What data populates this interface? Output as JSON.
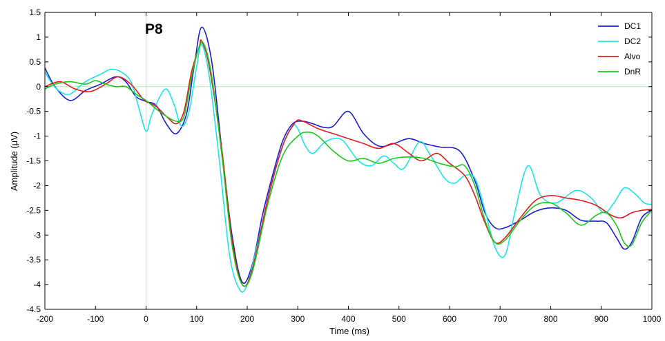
{
  "chart_data": {
    "type": "line",
    "title": "P8",
    "xlabel": "Time (ms)",
    "ylabel": "Amplitude (μV)",
    "xlim": [
      -200,
      1000
    ],
    "ylim": [
      -4.5,
      1.5
    ],
    "xticks": [
      -200,
      -100,
      0,
      100,
      200,
      300,
      400,
      500,
      600,
      700,
      800,
      900,
      1000
    ],
    "yticks": [
      -4.5,
      -4,
      -3.5,
      -3,
      -2.5,
      -2,
      -1.5,
      -1,
      -0.5,
      0,
      0.5,
      1,
      1.5
    ],
    "grid": false,
    "legend_position": "top-right",
    "reference_lines": {
      "x": 0,
      "y": 0,
      "color": "#b4e6b4"
    },
    "series": [
      {
        "name": "DC1",
        "color": "#1a1adc",
        "x": [
          -200,
          -180,
          -150,
          -120,
          -90,
          -60,
          -40,
          -20,
          0,
          20,
          40,
          60,
          80,
          95,
          110,
          130,
          150,
          170,
          190,
          210,
          230,
          250,
          270,
          290,
          310,
          330,
          350,
          370,
          400,
          430,
          460,
          490,
          520,
          550,
          580,
          620,
          650,
          670,
          690,
          710,
          740,
          770,
          800,
          830,
          860,
          890,
          910,
          930,
          945,
          960,
          980,
          1000
        ],
        "y": [
          0.38,
          0.0,
          -0.28,
          -0.08,
          0.05,
          0.2,
          0.1,
          -0.2,
          -0.3,
          -0.38,
          -0.75,
          -0.95,
          -0.55,
          0.4,
          1.2,
          0.5,
          -1.3,
          -3.0,
          -3.95,
          -3.6,
          -2.6,
          -1.8,
          -1.1,
          -0.75,
          -0.7,
          -0.75,
          -0.82,
          -0.8,
          -0.5,
          -0.95,
          -1.2,
          -1.15,
          -1.05,
          -1.15,
          -1.22,
          -1.3,
          -1.9,
          -2.55,
          -2.85,
          -2.85,
          -2.7,
          -2.52,
          -2.45,
          -2.5,
          -2.7,
          -2.72,
          -2.75,
          -3.05,
          -3.28,
          -3.15,
          -2.65,
          -2.5
        ]
      },
      {
        "name": "DC2",
        "color": "#19e6e6",
        "x": [
          -200,
          -185,
          -170,
          -150,
          -120,
          -90,
          -70,
          -50,
          -30,
          -15,
          0,
          10,
          25,
          40,
          55,
          70,
          85,
          100,
          110,
          125,
          145,
          165,
          185,
          200,
          220,
          245,
          270,
          290,
          300,
          315,
          330,
          350,
          370,
          390,
          420,
          445,
          470,
          490,
          510,
          540,
          560,
          590,
          610,
          630,
          650,
          670,
          690,
          710,
          730,
          755,
          780,
          810,
          850,
          880,
          905,
          925,
          945,
          965,
          985,
          1000
        ],
        "y": [
          0.3,
          0.05,
          -0.1,
          -0.15,
          0.1,
          0.25,
          0.35,
          0.3,
          0.1,
          -0.4,
          -0.9,
          -0.6,
          -0.25,
          -0.05,
          -0.35,
          -0.8,
          -0.5,
          0.4,
          0.85,
          0.2,
          -1.5,
          -3.4,
          -4.1,
          -4.0,
          -3.2,
          -2.1,
          -1.2,
          -0.8,
          -0.85,
          -1.2,
          -1.35,
          -1.15,
          -1.05,
          -1.1,
          -1.5,
          -1.6,
          -1.4,
          -1.55,
          -1.65,
          -1.12,
          -1.35,
          -1.85,
          -1.95,
          -1.8,
          -1.85,
          -2.5,
          -3.25,
          -3.4,
          -2.5,
          -1.6,
          -2.2,
          -2.35,
          -2.1,
          -2.25,
          -2.55,
          -2.35,
          -2.05,
          -2.15,
          -2.35,
          -2.38
        ]
      },
      {
        "name": "Alvo",
        "color": "#e61919",
        "x": [
          -200,
          -170,
          -140,
          -110,
          -80,
          -55,
          -30,
          -10,
          0,
          20,
          40,
          60,
          75,
          90,
          105,
          110,
          125,
          150,
          170,
          190,
          210,
          240,
          270,
          295,
          310,
          340,
          370,
          400,
          430,
          460,
          490,
          520,
          545,
          575,
          600,
          630,
          650,
          670,
          690,
          710,
          740,
          770,
          800,
          830,
          860,
          890,
          920,
          940,
          960,
          980,
          1000
        ],
        "y": [
          0.0,
          0.1,
          -0.05,
          -0.1,
          0.05,
          0.2,
          0.05,
          -0.2,
          -0.3,
          -0.4,
          -0.6,
          -0.75,
          -0.5,
          0.3,
          0.8,
          0.92,
          0.4,
          -1.3,
          -3.1,
          -4.0,
          -3.7,
          -2.3,
          -1.2,
          -0.72,
          -0.7,
          -0.85,
          -0.95,
          -1.05,
          -1.15,
          -1.25,
          -1.15,
          -1.35,
          -1.5,
          -1.35,
          -1.55,
          -1.8,
          -2.2,
          -2.75,
          -3.15,
          -3.05,
          -2.65,
          -2.3,
          -2.2,
          -2.25,
          -2.3,
          -2.4,
          -2.6,
          -2.65,
          -2.55,
          -2.5,
          -2.48
        ]
      },
      {
        "name": "DnR",
        "color": "#19c819",
        "x": [
          -200,
          -180,
          -150,
          -120,
          -100,
          -80,
          -60,
          -40,
          -20,
          0,
          20,
          40,
          60,
          75,
          90,
          105,
          115,
          130,
          150,
          170,
          190,
          210,
          240,
          270,
          300,
          320,
          340,
          370,
          400,
          430,
          460,
          490,
          520,
          550,
          580,
          610,
          630,
          650,
          670,
          690,
          710,
          740,
          770,
          800,
          830,
          860,
          890,
          910,
          930,
          945,
          960,
          980,
          1000
        ],
        "y": [
          -0.05,
          0.05,
          0.1,
          0.05,
          0.12,
          0.05,
          0.0,
          0.0,
          -0.15,
          -0.28,
          -0.45,
          -0.6,
          -0.7,
          -0.6,
          0.2,
          0.8,
          0.85,
          0.2,
          -1.4,
          -3.2,
          -4.0,
          -3.75,
          -2.4,
          -1.4,
          -1.0,
          -0.92,
          -1.0,
          -1.3,
          -1.5,
          -1.45,
          -1.55,
          -1.45,
          -1.42,
          -1.45,
          -1.55,
          -1.62,
          -1.6,
          -2.0,
          -2.7,
          -3.15,
          -3.1,
          -2.7,
          -2.4,
          -2.35,
          -2.55,
          -2.8,
          -2.6,
          -2.55,
          -2.8,
          -3.15,
          -3.2,
          -2.75,
          -2.5
        ]
      }
    ]
  }
}
